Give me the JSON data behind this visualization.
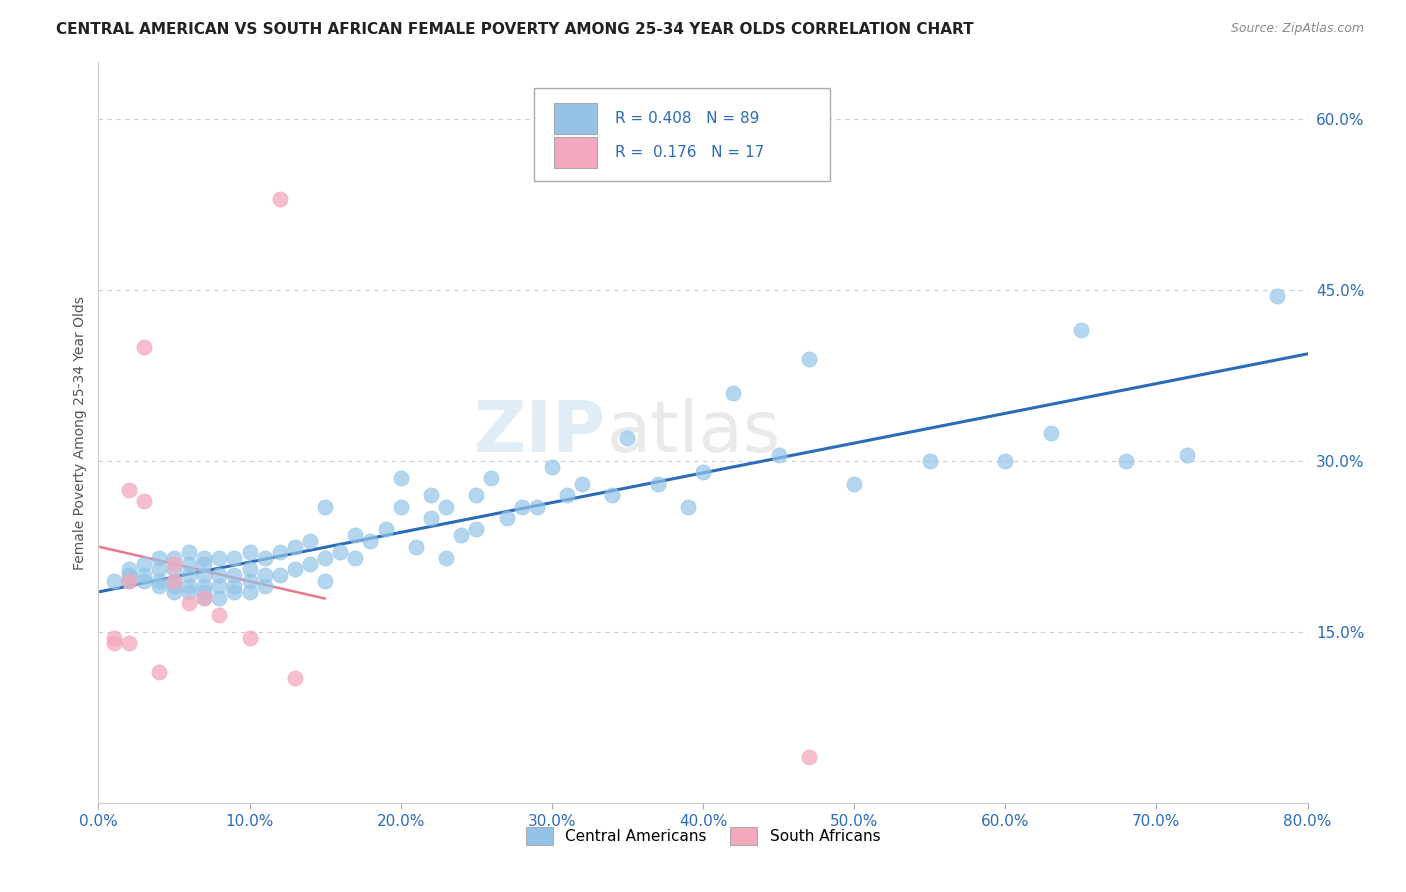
{
  "title": "CENTRAL AMERICAN VS SOUTH AFRICAN FEMALE POVERTY AMONG 25-34 YEAR OLDS CORRELATION CHART",
  "source": "Source: ZipAtlas.com",
  "ylabel": "Female Poverty Among 25-34 Year Olds",
  "xlim": [
    0.0,
    0.8
  ],
  "ylim": [
    0.0,
    0.65
  ],
  "xticks": [
    0.0,
    0.1,
    0.2,
    0.3,
    0.4,
    0.5,
    0.6,
    0.7,
    0.8
  ],
  "yticks_right": [
    0.15,
    0.3,
    0.45,
    0.6
  ],
  "ytick_labels_right": [
    "15.0%",
    "30.0%",
    "45.0%",
    "60.0%"
  ],
  "xtick_labels": [
    "0.0%",
    "10.0%",
    "20.0%",
    "30.0%",
    "40.0%",
    "50.0%",
    "60.0%",
    "70.0%",
    "80.0%"
  ],
  "ca_color": "#93c4e8",
  "sa_color": "#f4a8bc",
  "ca_line_color": "#2b6cb8",
  "sa_line_color": "#e8788a",
  "background_color": "#ffffff",
  "grid_color": "#cccccc",
  "ca_x": [
    0.01,
    0.02,
    0.02,
    0.02,
    0.03,
    0.03,
    0.03,
    0.04,
    0.04,
    0.04,
    0.04,
    0.05,
    0.05,
    0.05,
    0.05,
    0.05,
    0.06,
    0.06,
    0.06,
    0.06,
    0.06,
    0.07,
    0.07,
    0.07,
    0.07,
    0.07,
    0.07,
    0.08,
    0.08,
    0.08,
    0.08,
    0.09,
    0.09,
    0.09,
    0.09,
    0.1,
    0.1,
    0.1,
    0.1,
    0.11,
    0.11,
    0.11,
    0.12,
    0.12,
    0.13,
    0.13,
    0.14,
    0.14,
    0.15,
    0.15,
    0.15,
    0.16,
    0.17,
    0.17,
    0.18,
    0.19,
    0.2,
    0.2,
    0.21,
    0.22,
    0.22,
    0.23,
    0.23,
    0.24,
    0.25,
    0.25,
    0.26,
    0.27,
    0.28,
    0.29,
    0.3,
    0.31,
    0.32,
    0.34,
    0.35,
    0.37,
    0.39,
    0.4,
    0.42,
    0.45,
    0.47,
    0.5,
    0.55,
    0.6,
    0.63,
    0.65,
    0.68,
    0.72,
    0.78
  ],
  "ca_y": [
    0.195,
    0.2,
    0.195,
    0.205,
    0.195,
    0.2,
    0.21,
    0.19,
    0.195,
    0.205,
    0.215,
    0.185,
    0.19,
    0.195,
    0.205,
    0.215,
    0.185,
    0.19,
    0.2,
    0.21,
    0.22,
    0.18,
    0.185,
    0.19,
    0.2,
    0.21,
    0.215,
    0.18,
    0.19,
    0.2,
    0.215,
    0.185,
    0.19,
    0.2,
    0.215,
    0.185,
    0.195,
    0.205,
    0.22,
    0.19,
    0.2,
    0.215,
    0.2,
    0.22,
    0.205,
    0.225,
    0.21,
    0.23,
    0.195,
    0.215,
    0.26,
    0.22,
    0.215,
    0.235,
    0.23,
    0.24,
    0.26,
    0.285,
    0.225,
    0.25,
    0.27,
    0.215,
    0.26,
    0.235,
    0.24,
    0.27,
    0.285,
    0.25,
    0.26,
    0.26,
    0.295,
    0.27,
    0.28,
    0.27,
    0.32,
    0.28,
    0.26,
    0.29,
    0.36,
    0.305,
    0.39,
    0.28,
    0.3,
    0.3,
    0.325,
    0.415,
    0.3,
    0.305,
    0.445
  ],
  "sa_x": [
    0.01,
    0.01,
    0.02,
    0.02,
    0.02,
    0.03,
    0.03,
    0.04,
    0.05,
    0.05,
    0.06,
    0.07,
    0.08,
    0.1,
    0.12,
    0.13,
    0.47
  ],
  "sa_y": [
    0.14,
    0.145,
    0.14,
    0.275,
    0.195,
    0.265,
    0.4,
    0.115,
    0.21,
    0.195,
    0.175,
    0.18,
    0.165,
    0.145,
    0.53,
    0.11,
    0.04
  ],
  "watermark_zip": "ZIP",
  "watermark_atlas": "atlas",
  "legend_r1_val": "0.408",
  "legend_n1_val": "89",
  "legend_r2_val": "0.176",
  "legend_n2_val": "17"
}
